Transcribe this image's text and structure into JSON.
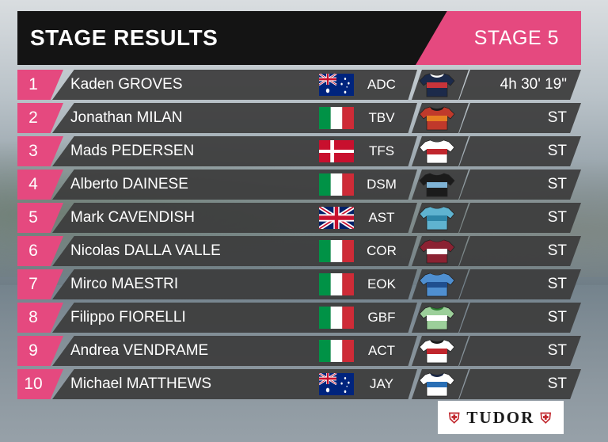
{
  "header": {
    "title": "STAGE RESULTS",
    "stage": "STAGE 5"
  },
  "colors": {
    "accent": "#e5497f",
    "row_bg": "#3c3c3c",
    "title_bg": "#141414"
  },
  "results": [
    {
      "pos": "1",
      "name": "Kaden GROVES",
      "flag": "australia",
      "team": "ADC",
      "jersey": [
        "#1c2a4a",
        "#c8343a",
        "#ffffff"
      ],
      "time": "4h 30' 19\""
    },
    {
      "pos": "2",
      "name": "Jonathan MILAN",
      "flag": "italy",
      "team": "TBV",
      "jersey": [
        "#c0392b",
        "#e67e22",
        "#1b1b1b"
      ],
      "time": "ST"
    },
    {
      "pos": "3",
      "name": "Mads PEDERSEN",
      "flag": "denmark",
      "team": "TFS",
      "jersey": [
        "#ffffff",
        "#c0262d",
        "#ffffff"
      ],
      "time": "ST"
    },
    {
      "pos": "4",
      "name": "Alberto DAINESE",
      "flag": "italy",
      "team": "DSM",
      "jersey": [
        "#1b1b1b",
        "#7fb3d5",
        "#1b1b1b"
      ],
      "time": "ST"
    },
    {
      "pos": "5",
      "name": "Mark CAVENDISH",
      "flag": "uk",
      "team": "AST",
      "jersey": [
        "#5fb3d0",
        "#2e86a8",
        "#5fb3d0"
      ],
      "time": "ST"
    },
    {
      "pos": "6",
      "name": "Nicolas DALLA VALLE",
      "flag": "italy",
      "team": "COR",
      "jersey": [
        "#8b2232",
        "#ffffff",
        "#8b2232"
      ],
      "time": "ST"
    },
    {
      "pos": "7",
      "name": "Mirco MAESTRI",
      "flag": "italy",
      "team": "EOK",
      "jersey": [
        "#4f8fd0",
        "#1f4f8f",
        "#4f8fd0"
      ],
      "time": "ST"
    },
    {
      "pos": "8",
      "name": "Filippo FIORELLI",
      "flag": "italy",
      "team": "GBF",
      "jersey": [
        "#9ccf9a",
        "#ffffff",
        "#2e7d32"
      ],
      "time": "ST"
    },
    {
      "pos": "9",
      "name": "Andrea VENDRAME",
      "flag": "italy",
      "team": "ACT",
      "jersey": [
        "#ffffff",
        "#c0262d",
        "#1b1b1b"
      ],
      "time": "ST"
    },
    {
      "pos": "10",
      "name": "Michael MATTHEWS",
      "flag": "australia",
      "team": "JAY",
      "jersey": [
        "#ffffff",
        "#2a6fb5",
        "#1c2a4a"
      ],
      "time": "ST"
    }
  ],
  "sponsor": {
    "name": "TUDOR"
  }
}
